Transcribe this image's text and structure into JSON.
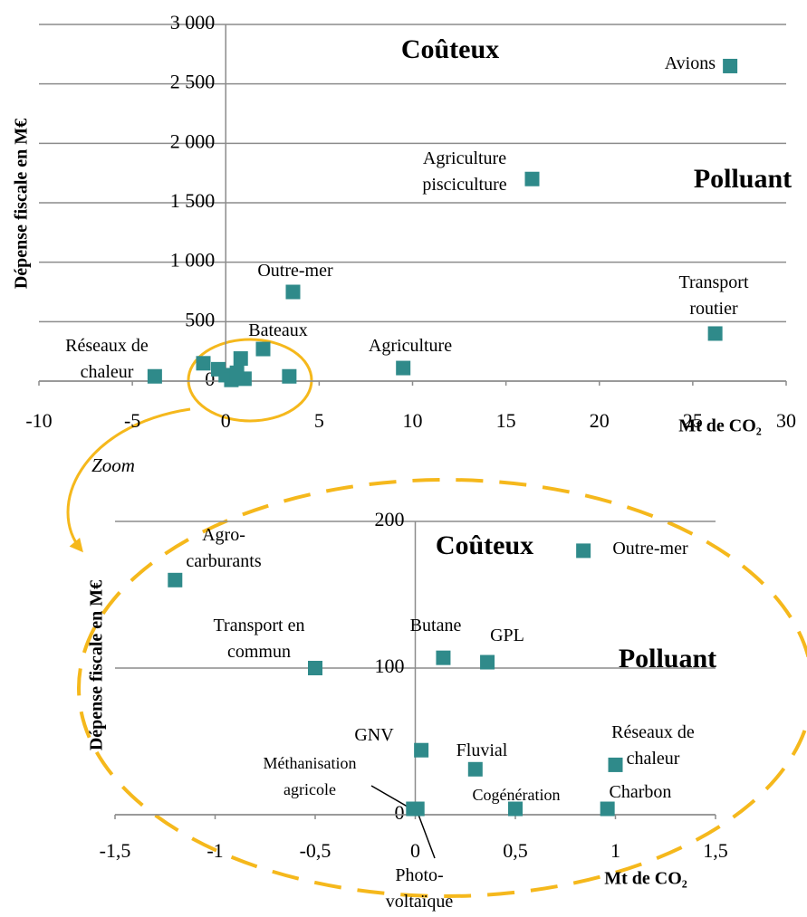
{
  "zoom_label": "Zoom",
  "chart_data": [
    {
      "type": "scatter",
      "x_label": "Mt de CO₂",
      "y_label": "Dépense fiscale en M€",
      "annotations": [
        "Coûteux",
        "Polluant"
      ],
      "color": "#2f8a8a",
      "xlim": [
        -10,
        30
      ],
      "xticks": [
        -10,
        -5,
        0,
        5,
        10,
        15,
        20,
        25,
        30
      ],
      "ylim": [
        0,
        3000
      ],
      "yticks": [
        0,
        500,
        {
          "value": 1000,
          "label": "1 000"
        },
        {
          "value": 1500,
          "label": "1 500"
        },
        {
          "value": 2000,
          "label": "2 000"
        },
        {
          "value": 2500,
          "label": "2 500"
        },
        {
          "value": 3000,
          "label": "3 000"
        }
      ],
      "grid": true,
      "x": [
        27,
        16.4,
        26.2,
        3.6,
        9.5,
        2.0,
        -3.8,
        3.4,
        -1.2,
        0.8,
        -0.4,
        0,
        0.3,
        1,
        0.6
      ],
      "y": [
        2650,
        1700,
        400,
        750,
        110,
        270,
        40,
        40,
        150,
        190,
        100,
        50,
        10,
        20,
        70
      ],
      "labels": [
        [
          "Avions"
        ],
        [
          "Agriculture",
          "pisciculture"
        ],
        [
          "Transport",
          "routier"
        ],
        [
          "Outre-mer"
        ],
        [
          "Agriculture"
        ],
        [
          "Bateaux"
        ],
        [
          "Réseaux de",
          "chaleur"
        ],
        null,
        null,
        null,
        null,
        null,
        null,
        null,
        null
      ]
    },
    {
      "type": "scatter",
      "x_label": "Mt de CO₂",
      "y_label": "Dépense fiscale en M€",
      "annotations": [
        "Coûteux",
        "Polluant"
      ],
      "color": "#2f8a8a",
      "xlim": [
        -1.5,
        1.5
      ],
      "xticks": [
        {
          "value": -1.5,
          "label": "-1,5"
        },
        -1,
        {
          "value": -0.5,
          "label": "-0,5"
        },
        0,
        {
          "value": 0.5,
          "label": "0,5"
        },
        1,
        {
          "value": 1.5,
          "label": "1,5"
        }
      ],
      "ylim": [
        0,
        200
      ],
      "yticks": [
        0,
        100,
        200
      ],
      "grid": true,
      "x": [
        -1.2,
        0.84,
        -0.5,
        0.14,
        0.36,
        0.03,
        0.3,
        1.0,
        -0.01,
        0.01,
        0.5,
        0.96
      ],
      "y": [
        160,
        180,
        100,
        107,
        104,
        44,
        31,
        34,
        4,
        4,
        4,
        4
      ],
      "labels": [
        [
          "Agro-",
          "carburants"
        ],
        [
          "Outre-mer"
        ],
        [
          "Transport en",
          "commun"
        ],
        [
          "Butane"
        ],
        [
          "GPL"
        ],
        [
          "GNV"
        ],
        [
          "Fluvial"
        ],
        [
          "Réseaux de",
          "chaleur"
        ],
        [
          "Méthanisation",
          "agricole"
        ],
        [
          "Photo-",
          "voltaïque"
        ],
        [
          "Cogénération"
        ],
        [
          "Charbon"
        ]
      ]
    }
  ]
}
